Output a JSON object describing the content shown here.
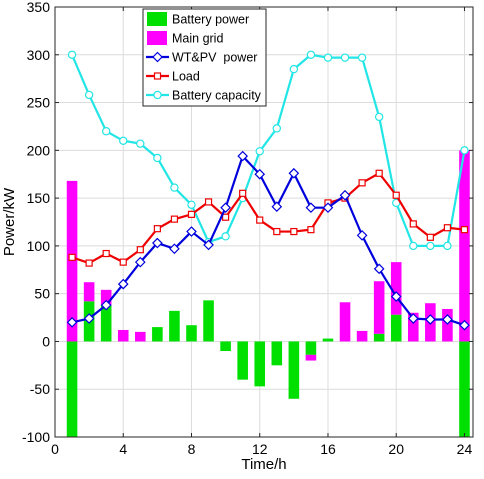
{
  "chart_data": {
    "type": "bar",
    "xlabel": "Time/h",
    "ylabel": "Power/kW",
    "xlim": [
      0,
      24.5
    ],
    "ylim": [
      -100,
      350
    ],
    "x_ticks": [
      0,
      4,
      8,
      12,
      16,
      20,
      24
    ],
    "y_ticks": [
      -100,
      -50,
      0,
      50,
      100,
      150,
      200,
      250,
      300,
      350
    ],
    "grid": true,
    "legend_position": "top-left",
    "hours": [
      1,
      2,
      3,
      4,
      5,
      6,
      7,
      8,
      9,
      10,
      11,
      12,
      13,
      14,
      15,
      16,
      17,
      18,
      19,
      20,
      21,
      22,
      23,
      24
    ],
    "series": [
      {
        "name": "Battery power",
        "kind": "bar",
        "color": "#00e000",
        "values": [
          -100,
          42,
          38,
          0,
          0,
          15,
          32,
          17,
          43,
          -10,
          -40,
          -47,
          -25,
          -60,
          -14,
          3,
          0,
          0,
          8,
          28,
          0,
          0,
          0,
          -100
        ]
      },
      {
        "name": "Main grid",
        "kind": "bar",
        "color": "#ff00ff",
        "values": [
          168,
          20,
          16,
          12,
          10,
          0,
          0,
          0,
          0,
          0,
          0,
          0,
          0,
          0,
          -6,
          0,
          41,
          11,
          55,
          55,
          30,
          40,
          34,
          200
        ]
      },
      {
        "name": "WT&PV  power",
        "kind": "line",
        "color": "#0000dd",
        "marker": "diamond",
        "values": [
          20,
          24,
          38,
          60,
          83,
          103,
          97,
          115,
          101,
          140,
          194,
          175,
          141,
          176,
          140,
          140,
          153,
          111,
          76,
          47,
          24,
          23,
          23,
          17
        ]
      },
      {
        "name": "Load",
        "kind": "line",
        "color": "#ee0000",
        "marker": "square",
        "values": [
          88,
          82,
          92,
          83,
          96,
          118,
          128,
          133,
          146,
          130,
          155,
          127,
          115,
          115,
          117,
          145,
          150,
          166,
          176,
          153,
          123,
          109,
          119,
          117
        ]
      },
      {
        "name": "Battery capacity",
        "kind": "line",
        "color": "#22e5e5",
        "marker": "circle",
        "values": [
          300,
          258,
          220,
          210,
          207,
          192,
          161,
          143,
          104,
          110,
          150,
          199,
          223,
          285,
          300,
          297,
          297,
          297,
          235,
          145,
          100,
          100,
          100,
          200
        ]
      }
    ]
  }
}
